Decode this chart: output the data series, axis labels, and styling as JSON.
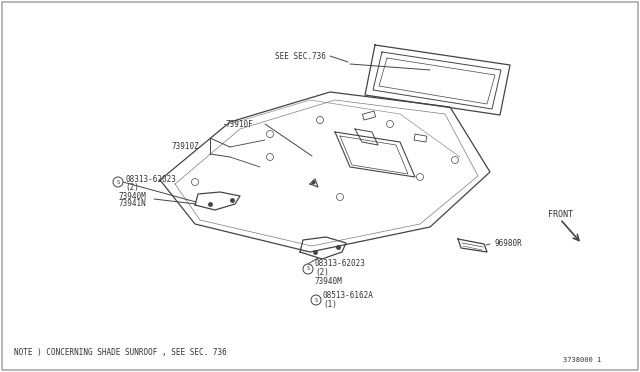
{
  "bg_color": "#ffffff",
  "border_color": "#aaaaaa",
  "line_color": "#444444",
  "text_color": "#333333",
  "note": "NOTE ) CONCERNING SHADE SUNROOF , SEE SEC. 736",
  "diagram_num": "3738000 1",
  "labels": {
    "see_sec_736": "SEE SEC.736",
    "part_73910f": "73910F",
    "part_73910z": "73910Z",
    "part_08313_left": "08313-62023",
    "qty_left": "(2)",
    "part_73940m_left": "73940M",
    "part_73941n": "73941N",
    "part_08313_bottom": "08313-62023",
    "qty_bottom": "(2)",
    "part_73940m_bottom": "73940M",
    "part_08513": "08513-6162A",
    "qty_08513": "(1)",
    "part_96980r": "96980R",
    "front": "FRONT"
  }
}
